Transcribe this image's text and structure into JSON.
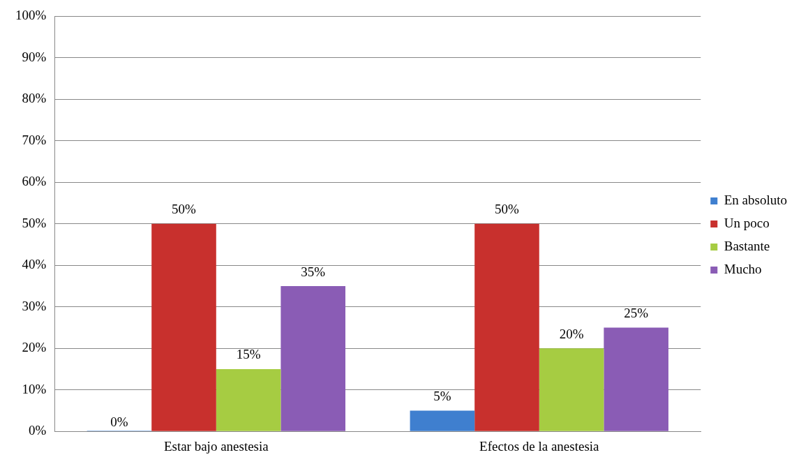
{
  "chart_data": {
    "type": "bar",
    "categories": [
      "Estar bajo anestesia",
      "Efectos de la anestesia"
    ],
    "series": [
      {
        "name": "En absoluto",
        "color": "#3f7fcf",
        "values": [
          0,
          5
        ],
        "value_labels": [
          "0%",
          "5%"
        ]
      },
      {
        "name": "Un poco",
        "color": "#c8302d",
        "values": [
          50,
          50
        ],
        "value_labels": [
          "50%",
          "50%"
        ]
      },
      {
        "name": "Bastante",
        "color": "#a6cc42",
        "values": [
          15,
          20
        ],
        "value_labels": [
          "15%",
          "20%"
        ]
      },
      {
        "name": "Mucho",
        "color": "#8a5cb5",
        "values": [
          35,
          25
        ],
        "value_labels": [
          "35%",
          "25%"
        ]
      }
    ],
    "ylim": [
      0,
      100
    ],
    "yticks": [
      {
        "value": 0,
        "label": "0%"
      },
      {
        "value": 10,
        "label": "10%"
      },
      {
        "value": 20,
        "label": "20%"
      },
      {
        "value": 30,
        "label": "30%"
      },
      {
        "value": 40,
        "label": "40%"
      },
      {
        "value": 50,
        "label": "50%"
      },
      {
        "value": 60,
        "label": "60%"
      },
      {
        "value": 70,
        "label": "70%"
      },
      {
        "value": 80,
        "label": "80%"
      },
      {
        "value": 90,
        "label": "90%"
      },
      {
        "value": 100,
        "label": "100%"
      }
    ],
    "grid": "y",
    "legend": "right"
  }
}
